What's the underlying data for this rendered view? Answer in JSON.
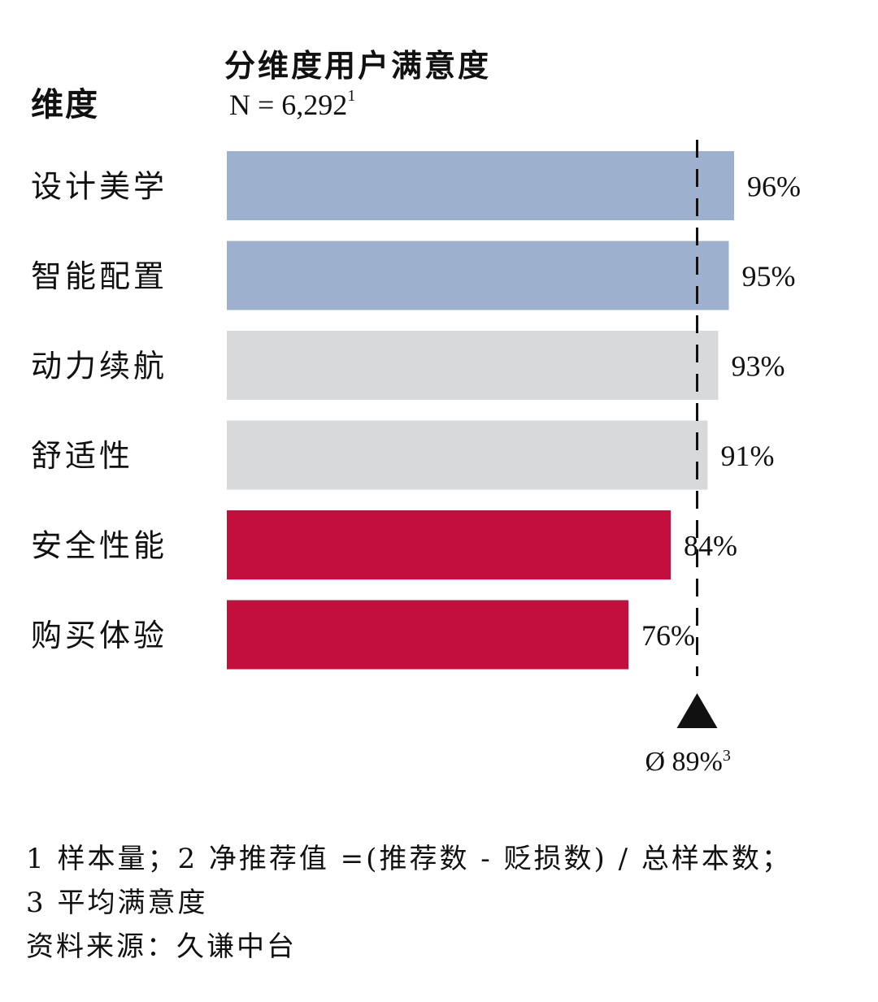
{
  "header": {
    "dimension_label": "维度",
    "title": "分维度用户满意度",
    "sample_prefix": "N = 6,292",
    "sample_sup": "1"
  },
  "chart_data": {
    "type": "bar",
    "orientation": "horizontal",
    "categories": [
      "设计美学",
      "智能配置",
      "动力续航",
      "舒适性",
      "安全性能",
      "购买体验"
    ],
    "values": [
      96,
      95,
      93,
      91,
      84,
      76
    ],
    "value_labels": [
      "96%",
      "95%",
      "93%",
      "91%",
      "84%",
      "76%"
    ],
    "bar_colors": [
      "#9db0cd",
      "#9db0cd",
      "#d8d9da",
      "#d8d9da",
      "#c20f3c",
      "#c20f3c"
    ],
    "xlim": [
      0,
      100
    ],
    "reference_line": {
      "value": 89,
      "label": "Ø 89%",
      "label_sup": "3"
    }
  },
  "footnotes": {
    "line1": "1 样本量；2 净推荐值 =(推荐数 - 贬损数) / 总样本数；",
    "line2": "3 平均满意度",
    "source": "资料来源：久谦中台"
  }
}
